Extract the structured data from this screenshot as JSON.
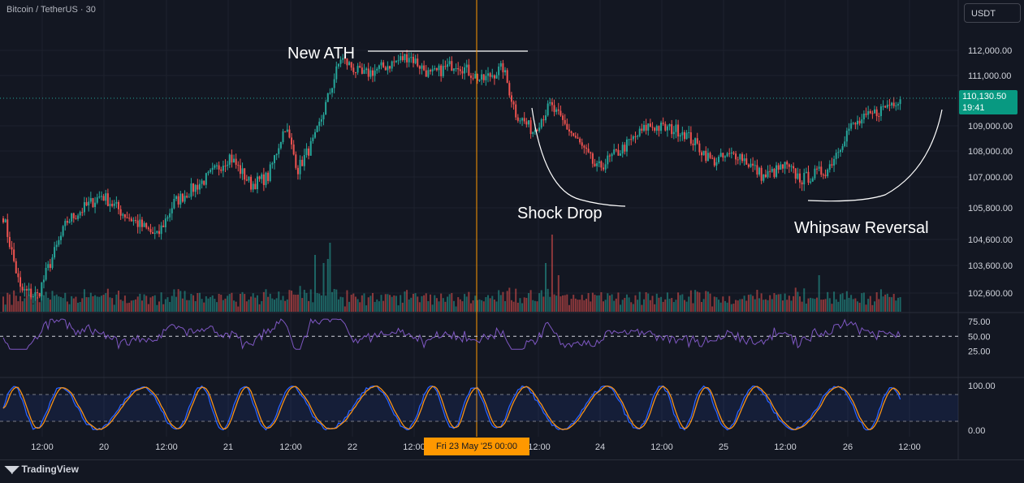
{
  "header": {
    "symbol": "Bitcoin / TetherUS · 30",
    "currency": "USDT"
  },
  "footer": {
    "brand": "TradingView"
  },
  "last_price": {
    "value": "110,130.50",
    "countdown": "19:41"
  },
  "crosshair": {
    "label": "Fri 23 May '25   00:00"
  },
  "annotations": {
    "ath": "New ATH",
    "shock": "Shock Drop",
    "whipsaw": "Whipsaw Reversal"
  },
  "colors": {
    "up": "#26a69a",
    "down": "#ef5350",
    "rsi": "#7e57c2",
    "k": "#2962ff",
    "d": "#f7931a",
    "cursor": "#ff9800",
    "bg": "#131722"
  },
  "chart_data": [
    {
      "type": "candlestick",
      "title": "",
      "price_labels": [
        "112,000.00",
        "111,000.00",
        "110,130.50",
        "109,000.00",
        "108,000.00",
        "107,000.00",
        "105,800.00",
        "104,600.00",
        "103,600.00",
        "102,600.00"
      ],
      "x_tick_labels": [
        "12:00",
        "20",
        "12:00",
        "21",
        "12:00",
        "22",
        "12:00",
        "24",
        "12:00",
        "25",
        "12:00",
        "26",
        "12:00"
      ],
      "anchors": [
        {
          "bar": 0,
          "price": 105500
        },
        {
          "bar": 8,
          "price": 102700
        },
        {
          "bar": 16,
          "price": 102500
        },
        {
          "bar": 30,
          "price": 105300
        },
        {
          "bar": 46,
          "price": 106300
        },
        {
          "bar": 56,
          "price": 105600
        },
        {
          "bar": 72,
          "price": 104700
        },
        {
          "bar": 80,
          "price": 106000
        },
        {
          "bar": 96,
          "price": 107000
        },
        {
          "bar": 106,
          "price": 107800
        },
        {
          "bar": 116,
          "price": 106700
        },
        {
          "bar": 124,
          "price": 107000
        },
        {
          "bar": 132,
          "price": 109000
        },
        {
          "bar": 138,
          "price": 107300
        },
        {
          "bar": 146,
          "price": 108500
        },
        {
          "bar": 158,
          "price": 111700
        },
        {
          "bar": 168,
          "price": 111000
        },
        {
          "bar": 180,
          "price": 111400
        },
        {
          "bar": 190,
          "price": 111800
        },
        {
          "bar": 200,
          "price": 111000
        },
        {
          "bar": 212,
          "price": 111500
        },
        {
          "bar": 224,
          "price": 110800
        },
        {
          "bar": 234,
          "price": 111300
        },
        {
          "bar": 240,
          "price": 109500
        },
        {
          "bar": 248,
          "price": 108800
        },
        {
          "bar": 256,
          "price": 109800
        },
        {
          "bar": 268,
          "price": 108500
        },
        {
          "bar": 278,
          "price": 107300
        },
        {
          "bar": 290,
          "price": 108100
        },
        {
          "bar": 302,
          "price": 109000
        },
        {
          "bar": 318,
          "price": 108800
        },
        {
          "bar": 332,
          "price": 107600
        },
        {
          "bar": 344,
          "price": 107900
        },
        {
          "bar": 356,
          "price": 107000
        },
        {
          "bar": 366,
          "price": 107400
        },
        {
          "bar": 374,
          "price": 106900
        },
        {
          "bar": 386,
          "price": 107300
        },
        {
          "bar": 396,
          "price": 108900
        },
        {
          "bar": 408,
          "price": 109500
        },
        {
          "bar": 420,
          "price": 110130
        }
      ],
      "rsi_levels": [
        "75.00",
        "50.00",
        "25.00"
      ],
      "stoch_levels": [
        "100.00",
        "0.00"
      ]
    }
  ]
}
